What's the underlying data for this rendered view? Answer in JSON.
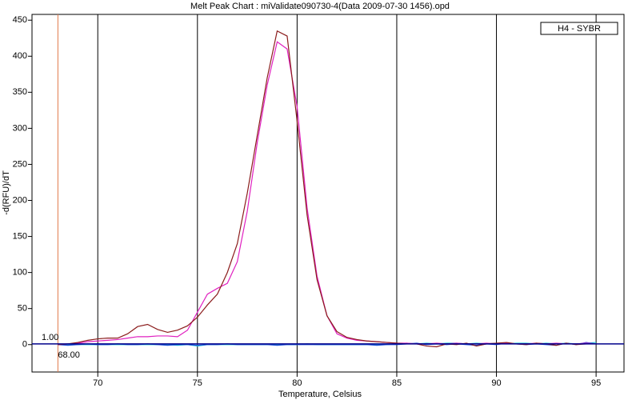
{
  "chart_data": {
    "type": "line",
    "title": "Melt Peak Chart : miValidate090730-4(Data 2009-07-30 1456).opd",
    "x_label": "Temperature, Celsius",
    "y_label": "-d(RFU)/dT",
    "legend": "H4 - SYBR",
    "threshold": {
      "value": 1,
      "label": "1.00"
    },
    "marker": {
      "value": 68,
      "label": "68.00"
    },
    "grid": "x",
    "xlim": [
      66.7,
      96.4
    ],
    "xticks": [
      70,
      75,
      80,
      85,
      90,
      95
    ],
    "ylim": [
      -38,
      458
    ],
    "yticks": [
      0,
      50,
      100,
      150,
      200,
      250,
      300,
      350,
      400,
      450
    ],
    "x": [
      68,
      68.5,
      69,
      69.5,
      70,
      70.5,
      71,
      71.5,
      72,
      72.5,
      73,
      73.5,
      74,
      74.5,
      75,
      75.5,
      76,
      76.5,
      77,
      77.5,
      78,
      78.5,
      79,
      79.5,
      80,
      80.5,
      81,
      81.5,
      82,
      82.5,
      83,
      83.5,
      84,
      84.5,
      85,
      85.5,
      86,
      86.5,
      87,
      87.5,
      88,
      88.5,
      89,
      89.5,
      90,
      90.5,
      91,
      91.5,
      92,
      92.5,
      93,
      93.5,
      94,
      94.5,
      95
    ],
    "series": [
      {
        "color": "#8b1c1c",
        "values": [
          0,
          1,
          3,
          6,
          8,
          9,
          9,
          15,
          25,
          28,
          21,
          17,
          20,
          26,
          38,
          55,
          70,
          100,
          140,
          210,
          290,
          370,
          435,
          428,
          310,
          180,
          90,
          40,
          18,
          10,
          7,
          5,
          4,
          3,
          2,
          1,
          1,
          -2,
          -3,
          1,
          0,
          2,
          -2,
          1,
          2,
          3,
          1,
          0,
          2,
          1,
          -1,
          2,
          0,
          1,
          1
        ]
      },
      {
        "color": "#e020c0",
        "values": [
          0,
          1,
          2,
          4,
          5,
          6,
          7,
          9,
          11,
          11,
          12,
          12,
          11,
          20,
          45,
          70,
          78,
          85,
          115,
          185,
          280,
          360,
          420,
          410,
          330,
          190,
          95,
          40,
          15,
          9,
          6,
          5,
          4,
          3,
          2,
          2,
          1,
          1,
          2,
          1,
          2,
          1,
          1,
          2,
          1,
          2,
          1,
          1,
          2,
          1,
          2,
          1,
          1,
          2,
          1
        ]
      },
      {
        "color": "#1c4fd8",
        "values": [
          0,
          -1,
          0,
          1,
          0,
          0,
          1,
          0,
          0,
          1,
          0,
          -1,
          0,
          0,
          -1,
          0,
          0,
          1,
          0,
          0,
          0,
          0,
          -1,
          0,
          0,
          0,
          0,
          0,
          0,
          0,
          0,
          0,
          -1,
          0,
          0,
          1,
          2,
          0,
          1,
          0,
          1,
          0,
          -1,
          1,
          0,
          2,
          1,
          0,
          1,
          0,
          -1,
          2,
          0,
          3,
          1
        ]
      },
      {
        "color": "#20c8d8",
        "values": [
          0,
          0,
          0,
          0,
          0,
          0,
          0,
          0,
          0,
          0,
          0,
          0,
          -1,
          0,
          -2,
          0,
          0,
          0,
          0,
          0,
          0,
          0,
          0,
          0,
          0,
          1,
          0,
          0,
          0,
          0,
          0,
          0,
          0,
          0,
          1,
          2,
          1,
          2,
          1,
          2,
          2,
          1,
          2,
          1,
          2,
          1,
          2,
          2,
          1,
          2,
          1,
          2,
          1,
          2,
          3
        ]
      }
    ]
  }
}
